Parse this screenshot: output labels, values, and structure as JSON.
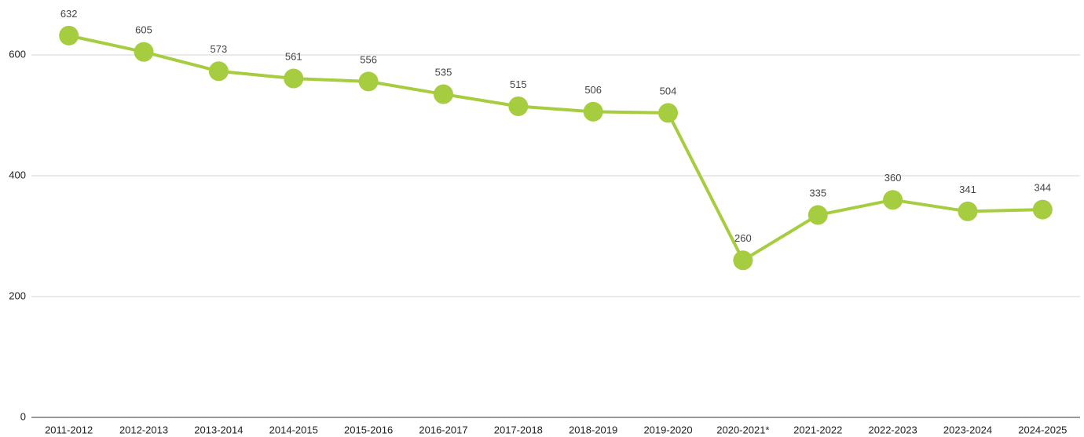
{
  "chart_data": {
    "type": "line",
    "categories": [
      "2011-2012",
      "2012-2013",
      "2013-2014",
      "2014-2015",
      "2015-2016",
      "2016-2017",
      "2017-2018",
      "2018-2019",
      "2019-2020",
      "2020-2021*",
      "2021-2022",
      "2022-2023",
      "2023-2024",
      "2024-2025"
    ],
    "values": [
      632,
      605,
      573,
      561,
      556,
      535,
      515,
      506,
      504,
      260,
      335,
      360,
      341,
      344
    ],
    "color": "#a6cd3f",
    "ylim": [
      0,
      690
    ],
    "yticks": [
      0,
      200,
      400,
      600
    ],
    "grid": true
  }
}
